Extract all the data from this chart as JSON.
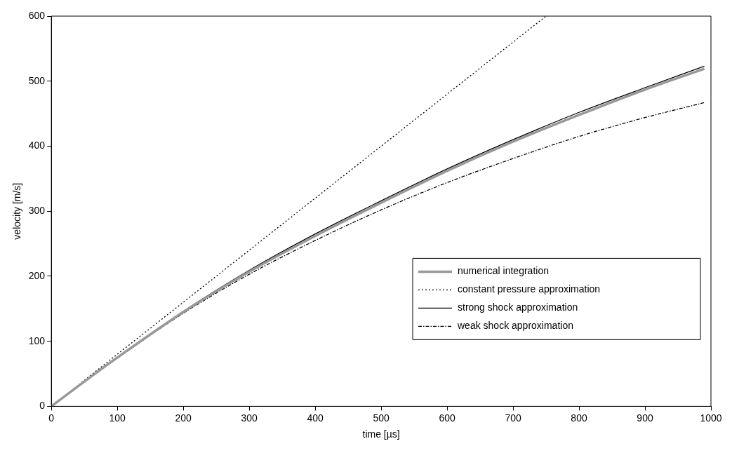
{
  "chart_data": {
    "type": "line",
    "xlabel": "time [µs]",
    "ylabel": "velocity [m/s]",
    "xlim": [
      0,
      1000
    ],
    "xticks": [
      0,
      100,
      200,
      300,
      400,
      500,
      600,
      700,
      800,
      900,
      1000
    ],
    "ylim": [
      0,
      600
    ],
    "yticks": [
      0,
      100,
      200,
      300,
      400,
      500,
      600
    ],
    "grid": false,
    "legend": "bottom right",
    "marker": "none",
    "series": [
      {
        "name": "numerical integration",
        "color": "#999999",
        "line_style": "solid",
        "x": [
          0,
          50,
          100,
          200,
          300,
          400,
          500,
          600,
          700,
          800,
          900,
          990
        ],
        "values": [
          0,
          38,
          75,
          145,
          207,
          262,
          313,
          362,
          407,
          448,
          487,
          519
        ]
      },
      {
        "name": "constant pressure approximation",
        "color": "#000000",
        "line_style": "dotted",
        "x": [
          0,
          750
        ],
        "values": [
          0,
          600
        ]
      },
      {
        "name": "strong shock approximation",
        "color": "#000000",
        "line_style": "solid",
        "x": [
          0,
          50,
          100,
          200,
          300,
          400,
          500,
          600,
          700,
          800,
          900,
          990
        ],
        "values": [
          0,
          38,
          75,
          146,
          209,
          265,
          316,
          365,
          410,
          452,
          490,
          523
        ]
      },
      {
        "name": "weak shock approximation",
        "color": "#000000",
        "line_style": "dashed",
        "x": [
          0,
          50,
          100,
          200,
          300,
          400,
          500,
          600,
          700,
          800,
          900,
          990
        ],
        "values": [
          0,
          38,
          74,
          143,
          203,
          255,
          302,
          344,
          381,
          415,
          444,
          467
        ]
      }
    ]
  }
}
